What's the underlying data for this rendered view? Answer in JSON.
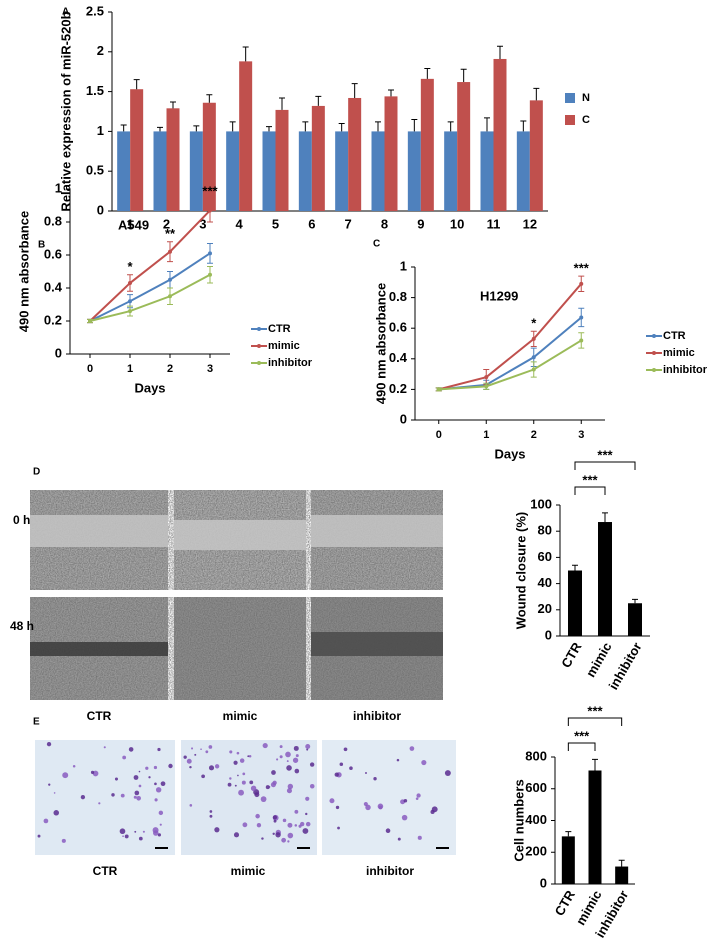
{
  "chart_data": [
    {
      "type": "bar",
      "label": "A",
      "ylabel": "Relative expression of miR-520b",
      "categories": [
        "1",
        "2",
        "3",
        "4",
        "5",
        "6",
        "7",
        "8",
        "9",
        "10",
        "11",
        "12"
      ],
      "series": [
        {
          "name": "N",
          "color": "#4f81bd",
          "values": [
            1,
            1,
            1,
            1,
            1,
            1,
            1,
            1,
            1,
            1,
            1,
            1
          ],
          "errors": [
            0.08,
            0.05,
            0.07,
            0.12,
            0.06,
            0.12,
            0.1,
            0.12,
            0.15,
            0.12,
            0.17,
            0.13
          ]
        },
        {
          "name": "C",
          "color": "#c0504d",
          "values": [
            1.53,
            1.29,
            1.36,
            1.88,
            1.27,
            1.32,
            1.42,
            1.44,
            1.66,
            1.62,
            1.91,
            1.39
          ],
          "errors": [
            0.12,
            0.08,
            0.1,
            0.18,
            0.15,
            0.12,
            0.18,
            0.08,
            0.13,
            0.16,
            0.16,
            0.15
          ]
        }
      ],
      "ylim": [
        0,
        2.5
      ],
      "yticks": [
        0,
        0.5,
        1,
        1.5,
        2,
        2.5
      ],
      "legend": "right"
    },
    {
      "type": "line",
      "label": "B",
      "title": "A549",
      "xlabel": "Days",
      "ylabel": "490 nm absorbance",
      "x": [
        0,
        1,
        2,
        3
      ],
      "xlim": [
        -0.5,
        3.5
      ],
      "xticks": [
        0,
        1,
        2,
        3
      ],
      "ylim": [
        0,
        1
      ],
      "yticks": [
        0,
        0.2,
        0.4,
        0.6,
        0.8,
        1
      ],
      "series": [
        {
          "name": "CTR",
          "color": "#4f81bd",
          "values": [
            0.2,
            0.32,
            0.45,
            0.61
          ],
          "errors": [
            0.01,
            0.04,
            0.05,
            0.06
          ]
        },
        {
          "name": "mimic",
          "color": "#c0504d",
          "values": [
            0.2,
            0.43,
            0.62,
            0.87
          ],
          "errors": [
            0.01,
            0.05,
            0.06,
            0.07
          ]
        },
        {
          "name": "inhibitor",
          "color": "#9bbb59",
          "values": [
            0.2,
            0.26,
            0.35,
            0.48
          ],
          "errors": [
            0.01,
            0.03,
            0.05,
            0.05
          ]
        }
      ],
      "annotations": [
        {
          "x": 1,
          "text": "*"
        },
        {
          "x": 2,
          "text": "**"
        },
        {
          "x": 3,
          "text": "***"
        }
      ],
      "legend": "right"
    },
    {
      "type": "line",
      "label": "C",
      "title": "H1299",
      "xlabel": "Days",
      "ylabel": "490 nm absorbance",
      "x": [
        0,
        1,
        2,
        3
      ],
      "xlim": [
        -0.5,
        3.5
      ],
      "xticks": [
        0,
        1,
        2,
        3
      ],
      "ylim": [
        0,
        1
      ],
      "yticks": [
        0,
        0.2,
        0.4,
        0.6,
        0.8,
        1
      ],
      "series": [
        {
          "name": "CTR",
          "color": "#4f81bd",
          "values": [
            0.2,
            0.23,
            0.41,
            0.67
          ],
          "errors": [
            0.01,
            0.03,
            0.06,
            0.06
          ]
        },
        {
          "name": "mimic",
          "color": "#c0504d",
          "values": [
            0.2,
            0.28,
            0.53,
            0.89
          ],
          "errors": [
            0.01,
            0.05,
            0.05,
            0.05
          ]
        },
        {
          "name": "inhibitor",
          "color": "#9bbb59",
          "values": [
            0.2,
            0.22,
            0.33,
            0.52
          ],
          "errors": [
            0.01,
            0.02,
            0.05,
            0.05
          ]
        }
      ],
      "annotations": [
        {
          "x": 2,
          "text": "*"
        },
        {
          "x": 3,
          "text": "***"
        }
      ],
      "legend": "right"
    },
    {
      "type": "bar",
      "ylabel": "Wound closure (%)",
      "categories": [
        "CTR",
        "mimic",
        "inhibitor"
      ],
      "values": [
        50,
        87,
        25
      ],
      "errors": [
        4,
        7,
        3
      ],
      "color": "#000000",
      "ylim": [
        0,
        100
      ],
      "yticks": [
        0,
        20,
        40,
        60,
        80,
        100
      ],
      "comparisons": [
        {
          "pair": [
            0,
            1
          ],
          "text": "***"
        },
        {
          "pair": [
            0,
            2
          ],
          "text": "***"
        }
      ]
    },
    {
      "type": "bar",
      "ylabel": "Cell numbers",
      "categories": [
        "CTR",
        "mimic",
        "inhibitor"
      ],
      "values": [
        300,
        715,
        110
      ],
      "errors": [
        30,
        70,
        40
      ],
      "color": "#000000",
      "ylim": [
        0,
        800
      ],
      "yticks": [
        0,
        200,
        400,
        600,
        800
      ],
      "comparisons": [
        {
          "pair": [
            0,
            1
          ],
          "text": "***"
        },
        {
          "pair": [
            0,
            2
          ],
          "text": "***"
        }
      ]
    }
  ],
  "images": [
    {
      "label": "D",
      "row_labels": [
        "0 h",
        "48 h"
      ],
      "column_labels": [
        "CTR",
        "mimic",
        "inhibitor"
      ]
    },
    {
      "label": "E",
      "column_labels": [
        "CTR",
        "mimic",
        "inhibitor"
      ]
    }
  ]
}
